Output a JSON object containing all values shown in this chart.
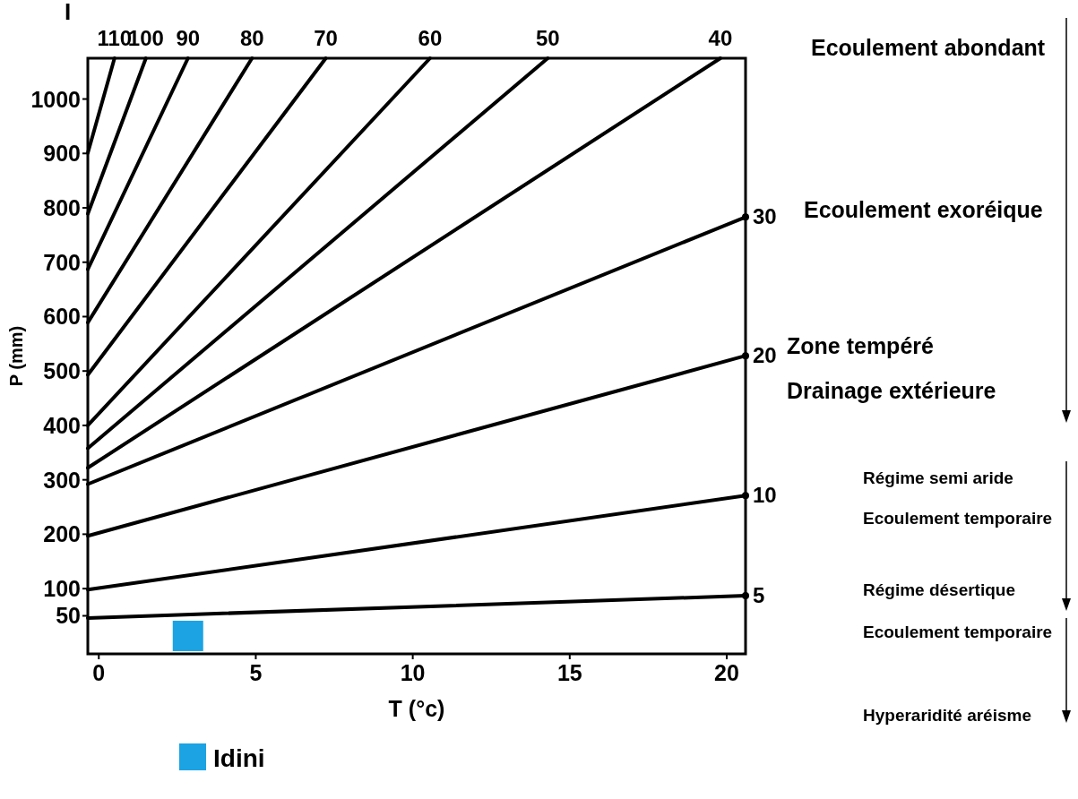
{
  "chart_data": {
    "type": "line",
    "xlabel": "T (°c)",
    "ylabel": "P (mm)",
    "xlim": [
      -0.35,
      20.6
    ],
    "xticks": [
      0,
      5,
      10,
      15,
      20
    ],
    "ylim": [
      -20,
      1075
    ],
    "yticks": [
      50,
      100,
      200,
      300,
      400,
      500,
      600,
      700,
      800,
      900,
      1000
    ],
    "grid": false,
    "legend": "bottom left",
    "line_style": "solid",
    "series": [
      {
        "name": "5",
        "color": "#000000",
        "x": [
          -0.35,
          20.6
        ],
        "values": [
          46,
          87
        ]
      },
      {
        "name": "10",
        "color": "#000000",
        "x": [
          -0.35,
          20.6
        ],
        "values": [
          98,
          271
        ]
      },
      {
        "name": "20",
        "color": "#000000",
        "x": [
          -0.35,
          20.6
        ],
        "values": [
          197,
          528
        ]
      },
      {
        "name": "30",
        "color": "#000000",
        "x": [
          -0.35,
          20.6
        ],
        "values": [
          292,
          783
        ]
      },
      {
        "name": "40",
        "color": "#000000",
        "x": [
          -0.35,
          19.8
        ],
        "values": [
          322,
          1075
        ]
      },
      {
        "name": "50",
        "color": "#000000",
        "x": [
          -0.35,
          14.3
        ],
        "values": [
          358,
          1075
        ]
      },
      {
        "name": "60",
        "color": "#000000",
        "x": [
          -0.35,
          10.55
        ],
        "values": [
          400,
          1075
        ]
      },
      {
        "name": "70",
        "color": "#000000",
        "x": [
          -0.35,
          7.23
        ],
        "values": [
          493,
          1075
        ]
      },
      {
        "name": "80",
        "color": "#000000",
        "x": [
          -0.35,
          4.88
        ],
        "values": [
          589,
          1075
        ]
      },
      {
        "name": "90",
        "color": "#000000",
        "x": [
          -0.35,
          2.84
        ],
        "values": [
          687,
          1075
        ]
      },
      {
        "name": "100",
        "color": "#000000",
        "x": [
          -0.35,
          1.5
        ],
        "values": [
          789,
          1075
        ]
      },
      {
        "name": "110",
        "color": "#000000",
        "x": [
          -0.35,
          0.5
        ],
        "values": [
          901,
          1075
        ]
      },
      {
        "name": "Idini",
        "type": "scatter",
        "marker": "square",
        "color": "#1ba3e3",
        "x": [
          2.84
        ],
        "values": [
          13
        ]
      }
    ],
    "annotations": [
      "I",
      "Ecoulement abondant",
      "Ecoulement exoréique",
      "Zone tempéré",
      "Drainage extérieure",
      "Régime semi aride",
      "Ecoulement temporaire",
      "Régime désertique",
      "Ecoulement temporaire",
      "Hyperaridité aréisme"
    ]
  }
}
